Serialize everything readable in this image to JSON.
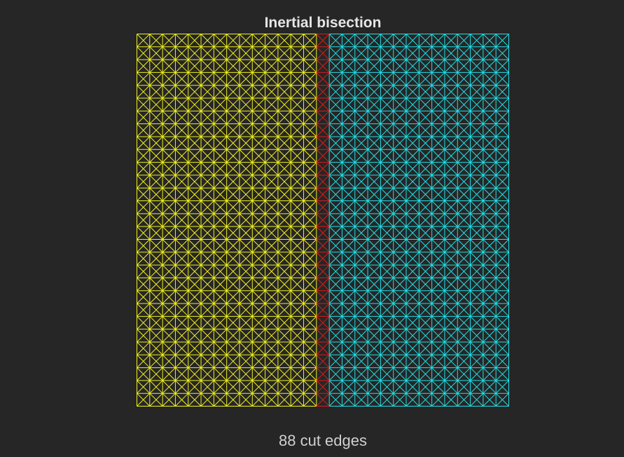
{
  "figure": {
    "title": "Inertial bisection",
    "caption": "88 cut edges"
  },
  "mesh": {
    "grid_cells": 29,
    "partition_split_column": 14,
    "cut_edge_count": 88,
    "colors": {
      "background": "#262626",
      "partition_a": "#f0f020",
      "partition_b": "#20e0e8",
      "cut_edges": "#dd1a1a"
    }
  }
}
